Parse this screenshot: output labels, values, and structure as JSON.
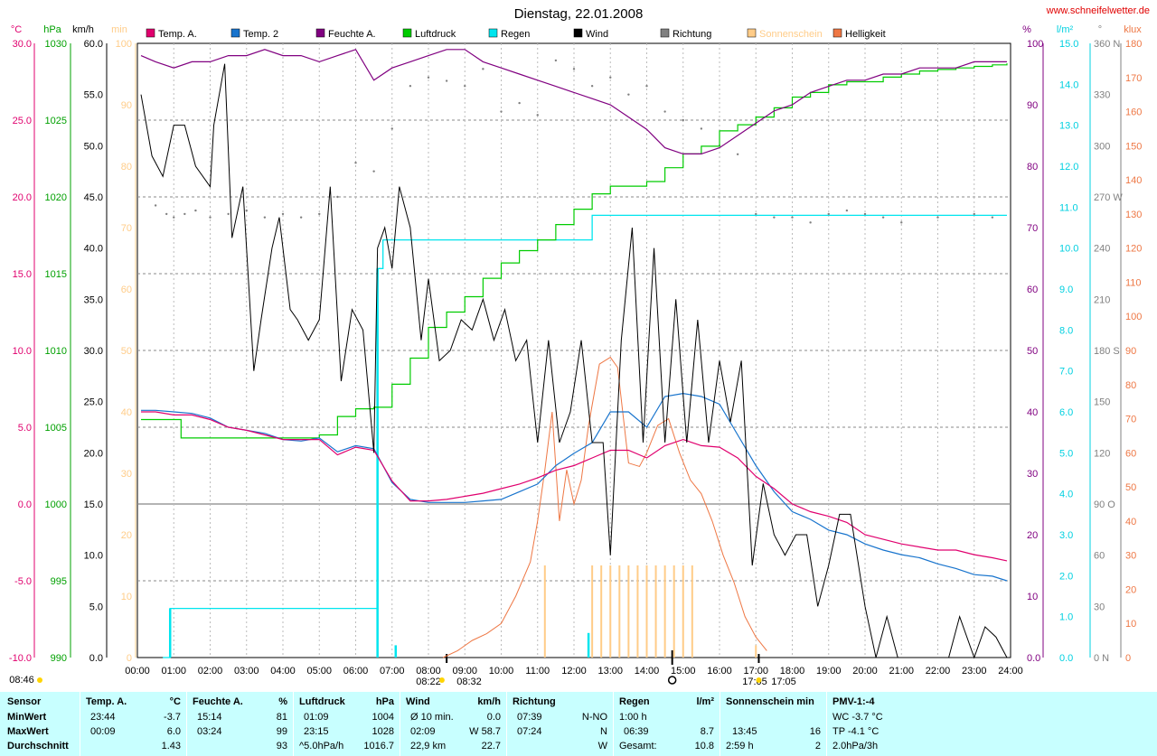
{
  "header": {
    "title": "Dienstag, 22.01.2008",
    "url": "www.schneifelwetter.de"
  },
  "axes": {
    "temp_unit": "°C",
    "hpa_unit": "hPa",
    "kmh_unit": "km/h",
    "min_unit": "min",
    "pct_unit": "%",
    "rain_unit": "l/m²",
    "deg_unit": "°",
    "klux_unit": "klux",
    "temp_ticks": [
      "30.0",
      "25.0",
      "20.0",
      "15.0",
      "10.0",
      "5.0",
      "0.0",
      "-5.0",
      "-10.0"
    ],
    "hpa_ticks": [
      "1030",
      "1025",
      "1020",
      "1015",
      "1010",
      "1005",
      "1000",
      "995",
      "990"
    ],
    "kmh_ticks": [
      "60.0",
      "55.0",
      "50.0",
      "45.0",
      "40.0",
      "35.0",
      "30.0",
      "25.0",
      "20.0",
      "15.0",
      "10.0",
      "5.0",
      "0.0"
    ],
    "min_ticks": [
      "100",
      "90",
      "80",
      "70",
      "60",
      "50",
      "40",
      "30",
      "20",
      "10",
      "0"
    ],
    "pct_ticks": [
      "100",
      "90",
      "80",
      "70",
      "60",
      "50",
      "40",
      "30",
      "20",
      "10",
      "0.0"
    ],
    "rain_ticks": [
      "15.0",
      "14.0",
      "13.0",
      "12.0",
      "11.0",
      "10.0",
      "9.0",
      "8.0",
      "7.0",
      "6.0",
      "5.0",
      "4.0",
      "3.0",
      "2.0",
      "1.0",
      "0.0"
    ],
    "deg_ticks": [
      "360 N",
      "330",
      "300",
      "270 W",
      "240",
      "210",
      "180 S",
      "150",
      "120",
      "90 O",
      "60",
      "30",
      "0 N"
    ],
    "klux_ticks": [
      "180",
      "170",
      "160",
      "150",
      "140",
      "130",
      "120",
      "110",
      "100",
      "90",
      "80",
      "70",
      "60",
      "50",
      "40",
      "30",
      "20",
      "10",
      "0"
    ],
    "x_ticks": [
      "00:00",
      "01:00",
      "02:00",
      "03:00",
      "04:00",
      "05:00",
      "06:00",
      "07:00",
      "08:00",
      "09:00",
      "10:00",
      "11:00",
      "12:00",
      "13:00",
      "14:00",
      "15:00",
      "16:00",
      "17:00",
      "18:00",
      "19:00",
      "20:00",
      "21:00",
      "22:00",
      "23:00",
      "24:00"
    ],
    "sunrise_label": "08:22",
    "sunrise_label2": "08:32",
    "sunset_label": "17:05",
    "sunset_label2": "17:05",
    "left_time_label": "08:46"
  },
  "legend": [
    {
      "label": "Temp. A.",
      "color": "#e0006e"
    },
    {
      "label": "Temp. 2",
      "color": "#1874cd"
    },
    {
      "label": "Feuchte A.",
      "color": "#800080"
    },
    {
      "label": "Luftdruck",
      "color": "#00cc00"
    },
    {
      "label": "Regen",
      "color": "#00e5ee"
    },
    {
      "label": "Wind",
      "color": "#000000"
    },
    {
      "label": "Richtung",
      "color": "#808080"
    },
    {
      "label": "Sonnenschein",
      "color": "#ffcc88"
    },
    {
      "label": "Helligkeit",
      "color": "#ee7744"
    }
  ],
  "chart_data": {
    "type": "line",
    "title": "Dienstag, 22.01.2008",
    "xlabel": "",
    "ylabel": "",
    "x_range": [
      "00:00",
      "24:00"
    ],
    "series": [
      {
        "name": "Temp. A.",
        "unit": "°C",
        "ylim": [
          -10,
          30
        ],
        "color": "#e0006e",
        "x": [
          0.1,
          0.5,
          1,
          1.5,
          2,
          2.5,
          3,
          3.5,
          4,
          4.5,
          5,
          5.5,
          6,
          6.5,
          7,
          7.5,
          8,
          8.5,
          9,
          9.5,
          10,
          10.5,
          11,
          11.5,
          12,
          12.5,
          13,
          13.5,
          14,
          14.5,
          15,
          15.5,
          16,
          16.5,
          17,
          17.5,
          18,
          18.5,
          19,
          19.5,
          20,
          20.5,
          21,
          21.5,
          22,
          22.5,
          23,
          23.5,
          23.9
        ],
        "y": [
          6.0,
          6.0,
          5.8,
          5.8,
          5.5,
          5.0,
          4.8,
          4.5,
          4.2,
          4.2,
          4.2,
          3.2,
          3.7,
          3.5,
          1.5,
          0.2,
          0.2,
          0.3,
          0.5,
          0.7,
          1.0,
          1.3,
          1.7,
          2.2,
          2.5,
          3.0,
          3.5,
          3.5,
          3.0,
          3.8,
          4.2,
          3.8,
          3.7,
          3.0,
          1.8,
          1.0,
          0.0,
          -0.5,
          -0.8,
          -1.2,
          -2.0,
          -2.3,
          -2.6,
          -2.8,
          -3.0,
          -3.0,
          -3.3,
          -3.5,
          -3.7
        ]
      },
      {
        "name": "Temp. 2",
        "unit": "°C",
        "ylim": [
          -10,
          30
        ],
        "color": "#1874cd",
        "x": [
          0.1,
          0.5,
          1,
          1.5,
          2,
          2.5,
          3,
          3.5,
          4,
          4.5,
          5,
          5.5,
          6,
          6.5,
          7,
          7.5,
          8,
          8.5,
          9,
          9.5,
          10,
          10.5,
          11,
          11.5,
          12,
          12.5,
          13,
          13.5,
          14,
          14.5,
          15,
          15.5,
          16,
          16.5,
          17,
          17.5,
          18,
          18.5,
          19,
          19.5,
          20,
          20.5,
          21,
          21.5,
          22,
          22.5,
          23,
          23.5,
          23.9
        ],
        "y": [
          6.1,
          6.1,
          6.0,
          5.9,
          5.6,
          5.0,
          4.8,
          4.6,
          4.2,
          4.1,
          4.3,
          3.4,
          3.8,
          3.6,
          1.4,
          0.3,
          0.1,
          0.1,
          0.1,
          0.2,
          0.3,
          0.8,
          1.3,
          2.5,
          3.3,
          4.0,
          6.0,
          6.0,
          5.0,
          7.0,
          7.2,
          7.0,
          6.5,
          4.5,
          2.5,
          0.8,
          -0.5,
          -1.0,
          -1.7,
          -2.0,
          -2.6,
          -3.0,
          -3.3,
          -3.5,
          -3.9,
          -4.2,
          -4.6,
          -4.7,
          -5.0
        ]
      },
      {
        "name": "Feuchte A.",
        "unit": "%",
        "ylim": [
          0,
          100
        ],
        "color": "#800080",
        "x": [
          0.1,
          0.5,
          1,
          1.5,
          2,
          2.5,
          3,
          3.5,
          4,
          4.5,
          5,
          5.5,
          6,
          6.5,
          7,
          7.5,
          8,
          8.5,
          9,
          9.5,
          10,
          10.5,
          11,
          11.5,
          12,
          12.5,
          13,
          13.5,
          14,
          14.5,
          15,
          15.5,
          16,
          16.5,
          17,
          17.5,
          18,
          18.5,
          19,
          19.5,
          20,
          20.5,
          21,
          21.5,
          22,
          22.5,
          23,
          23.5,
          23.9
        ],
        "y": [
          98,
          97,
          96,
          97,
          97,
          98,
          98,
          99,
          98,
          98,
          97,
          98,
          99,
          94,
          96,
          97,
          98,
          99,
          99,
          97,
          96,
          95,
          94,
          93,
          92,
          91,
          90,
          88,
          86,
          83,
          82,
          82,
          83,
          85,
          87,
          89,
          90,
          92,
          93,
          94,
          94,
          95,
          95,
          96,
          96,
          96,
          97,
          97,
          97
        ]
      },
      {
        "name": "Luftdruck",
        "unit": "hPa",
        "ylim": [
          990,
          1030
        ],
        "color": "#00cc00",
        "x": [
          0.1,
          1,
          1.2,
          2,
          3,
          4,
          5,
          5.5,
          6,
          6.5,
          7,
          7.5,
          8,
          8.5,
          9,
          9.5,
          10,
          10.5,
          11,
          11.5,
          12,
          12.5,
          13,
          13.5,
          14,
          14.5,
          15,
          15.5,
          16,
          16.5,
          17,
          17.5,
          18,
          18.5,
          19,
          19.5,
          20,
          20.5,
          21,
          21.5,
          22,
          22.5,
          23,
          23.5,
          23.9
        ],
        "y": [
          1005.5,
          1005.5,
          1004.3,
          1004.3,
          1004.3,
          1004.3,
          1004.5,
          1005.7,
          1006.2,
          1006.3,
          1007.8,
          1009.5,
          1011.5,
          1012.5,
          1013.5,
          1014.7,
          1015.7,
          1016.5,
          1017.2,
          1018.2,
          1019.2,
          1020.2,
          1020.7,
          1020.7,
          1021.0,
          1021.9,
          1022.8,
          1023.3,
          1024.3,
          1024.7,
          1025.2,
          1025.8,
          1026.5,
          1026.8,
          1027.3,
          1027.5,
          1027.5,
          1027.8,
          1028.0,
          1028.2,
          1028.3,
          1028.4,
          1028.5,
          1028.6,
          1028.7
        ]
      },
      {
        "name": "Regen",
        "unit": "l/m²",
        "ylim": [
          0,
          15
        ],
        "color": "#00e5ee",
        "x": [
          0.7,
          0.9,
          6.5,
          6.6,
          6.75,
          7.0,
          7.5,
          8,
          9,
          10,
          11,
          12,
          12.4,
          12.5,
          13,
          14,
          15,
          16,
          17,
          18,
          19,
          20,
          21,
          22,
          23,
          23.9
        ],
        "y": [
          0,
          1.2,
          1.2,
          9.5,
          10.2,
          10.2,
          10.2,
          10.2,
          10.2,
          10.2,
          10.2,
          10.2,
          10.2,
          10.8,
          10.8,
          10.8,
          10.8,
          10.8,
          10.8,
          10.8,
          10.8,
          10.8,
          10.8,
          10.8,
          10.8,
          10.8
        ]
      },
      {
        "name": "Wind",
        "unit": "km/h",
        "ylim": [
          0,
          60
        ],
        "color": "#000000",
        "x": [
          0.1,
          0.4,
          0.7,
          1,
          1.3,
          1.6,
          2,
          2.1,
          2.4,
          2.6,
          2.9,
          3.2,
          3.4,
          3.7,
          3.9,
          4.2,
          4.4,
          4.7,
          5,
          5.3,
          5.6,
          5.9,
          6.2,
          6.5,
          6.6,
          6.8,
          7.0,
          7.2,
          7.5,
          7.8,
          8.0,
          8.3,
          8.6,
          8.9,
          9.2,
          9.5,
          9.8,
          10.1,
          10.4,
          10.7,
          11.0,
          11.3,
          11.6,
          11.9,
          12.2,
          12.5,
          12.8,
          13.0,
          13.3,
          13.6,
          13.9,
          14.2,
          14.5,
          14.8,
          15.1,
          15.4,
          15.7,
          16.0,
          16.3,
          16.6,
          16.9,
          17.2,
          17.5,
          17.8,
          18.1,
          18.4,
          18.7,
          19.0,
          19.3,
          19.6,
          20.0,
          20.3,
          20.6,
          20.9,
          21.2,
          21.5,
          22.0,
          22.3,
          22.6,
          23.0,
          23.3,
          23.6,
          23.9
        ],
        "y": [
          55,
          49,
          47,
          52,
          52,
          48,
          46,
          52,
          58,
          41,
          46,
          28,
          33,
          40,
          43,
          34,
          33,
          31,
          33,
          46,
          27,
          34,
          32,
          20,
          40,
          42,
          38,
          46,
          42,
          31,
          37,
          29,
          30,
          33,
          32,
          35,
          31,
          34,
          29,
          31,
          21,
          31,
          21,
          24,
          31,
          21,
          21,
          10,
          31,
          42,
          21,
          40,
          21,
          35,
          21,
          33,
          21,
          29,
          23,
          29,
          9,
          17,
          12,
          10,
          12,
          12,
          5,
          9,
          14,
          14,
          5,
          0,
          4,
          0,
          0,
          0,
          0,
          0,
          4,
          0,
          3,
          2,
          0
        ]
      },
      {
        "name": "Helligkeit",
        "unit": "klux",
        "ylim": [
          0,
          180
        ],
        "color": "#ee7744",
        "x": [
          8.4,
          8.8,
          9.2,
          9.6,
          10.0,
          10.4,
          10.8,
          11.0,
          11.2,
          11.4,
          11.6,
          11.8,
          12.0,
          12.2,
          12.4,
          12.7,
          13.0,
          13.2,
          13.5,
          13.8,
          14.0,
          14.3,
          14.6,
          14.9,
          15.2,
          15.5,
          15.8,
          16.1,
          16.4,
          16.7,
          17.0,
          17.3
        ],
        "y": [
          0,
          2,
          5,
          7,
          10,
          18,
          28,
          40,
          55,
          72,
          40,
          55,
          45,
          52,
          68,
          86,
          88,
          85,
          57,
          56,
          60,
          68,
          70,
          60,
          52,
          48,
          40,
          30,
          22,
          12,
          6,
          2
        ]
      },
      {
        "name": "Sonnenschein",
        "unit": "min",
        "ylim": [
          0,
          100
        ],
        "color": "#ffcc88",
        "x": [
          11.2,
          12.5,
          12.75,
          13.0,
          13.25,
          13.5,
          13.75,
          14.0,
          14.25,
          14.5,
          14.75,
          15.0,
          15.25,
          17.0
        ],
        "y": [
          15,
          15,
          15,
          15,
          15,
          15,
          15,
          15,
          15,
          15,
          15,
          15,
          15,
          2
        ]
      },
      {
        "name": "Richtung",
        "unit": "°",
        "ylim": [
          0,
          360
        ],
        "color": "#808080",
        "x": [
          0.5,
          0.8,
          1.0,
          1.3,
          1.6,
          2.0,
          2.5,
          3.0,
          3.5,
          4.0,
          4.5,
          5.0,
          5.5,
          6.0,
          6.5,
          7.0,
          7.5,
          8.0,
          8.5,
          9.0,
          9.5,
          10.0,
          10.5,
          11.0,
          11.5,
          12.0,
          12.5,
          13.0,
          13.5,
          14.0,
          14.5,
          15.0,
          15.5,
          16.0,
          16.5,
          17.0,
          17.5,
          18.0,
          18.5,
          19.0,
          19.5,
          20.0,
          20.5,
          21.0,
          22.0,
          23.0,
          23.5
        ],
        "y": [
          265,
          260,
          258,
          260,
          262,
          258,
          260,
          262,
          258,
          260,
          258,
          260,
          270,
          290,
          285,
          310,
          335,
          340,
          338,
          335,
          345,
          320,
          325,
          318,
          350,
          345,
          335,
          340,
          330,
          335,
          320,
          315,
          310,
          300,
          295,
          260,
          258,
          258,
          255,
          260,
          262,
          260,
          258,
          255,
          258,
          260,
          258
        ]
      }
    ]
  },
  "stats": {
    "headers": {
      "sensor": "Sensor",
      "temp": "Temp. A.",
      "temp_u": "°C",
      "feuchte": "Feuchte A.",
      "feuchte_u": "%",
      "luft": "Luftdruck",
      "luft_u": "hPa",
      "wind": "Wind",
      "wind_u": "km/h",
      "richtung": "Richtung",
      "regen": "Regen",
      "regen_u": "l/m²",
      "sonne": "Sonnenschein min",
      "pmv": "PMV-1:-4"
    },
    "rows": [
      {
        "label": "MinWert",
        "temp_t": "23:44",
        "temp_v": "-3.7",
        "feu_t": "15:14",
        "feu_v": "81",
        "luft_t": "01:09",
        "luft_v": "1004",
        "wind_t": "Ø 10 min.",
        "wind_v": "0.0",
        "dir_t": "07:39",
        "dir_v": "N-NO",
        "regen_t": "1:00 h",
        "regen_v": "",
        "sonne_t": "",
        "sonne_v": "",
        "pmv": "WC -3.7 °C"
      },
      {
        "label": "MaxWert",
        "temp_t": "00:09",
        "temp_v": "6.0",
        "feu_t": "03:24",
        "feu_v": "99",
        "luft_t": "23:15",
        "luft_v": "1028",
        "wind_t": "02:09",
        "wind_v": "W 58.7",
        "dir_t": "07:24",
        "dir_v": "N",
        "regen_t": "06:39",
        "regen_v": "8.7",
        "sonne_t": "13:45",
        "sonne_v": "16",
        "pmv": "TP -4.1 °C"
      },
      {
        "label": "Durchschnitt",
        "temp_t": "",
        "temp_v": "1.43",
        "feu_t": "",
        "feu_v": "93",
        "luft_t": "^5.0hPa/h",
        "luft_v": "1016.7",
        "wind_t": "22,9 km",
        "wind_v": "22.7",
        "dir_t": "",
        "dir_v": "W",
        "regen_t": "Gesamt:",
        "regen_v": "10.8",
        "sonne_t": "2:59 h",
        "sonne_v": "2",
        "pmv": "2.0hPa/3h"
      }
    ]
  }
}
